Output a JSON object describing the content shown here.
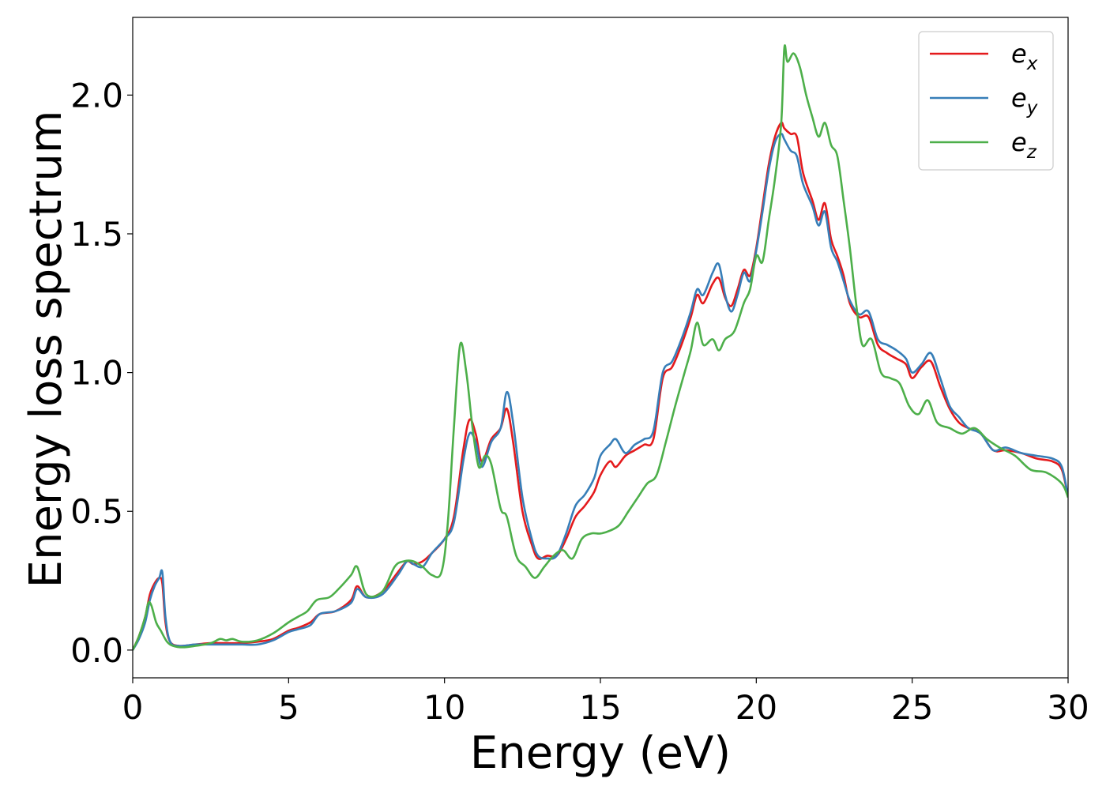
{
  "chart_data": {
    "type": "line",
    "title": "",
    "xlabel": "Energy (eV)",
    "ylabel": "Energy loss spectrum",
    "xlim": [
      0,
      30
    ],
    "ylim": [
      -0.1,
      2.28
    ],
    "xticks": [
      "0",
      "5",
      "10",
      "15",
      "20",
      "25",
      "30"
    ],
    "yticks": [
      "0.0",
      "0.5",
      "1.0",
      "1.5",
      "2.0"
    ],
    "grid": false,
    "legend_position": "top-right",
    "series": [
      {
        "name": "e_x",
        "legend_base": "e",
        "legend_sub": "x",
        "color": "#e41a1c",
        "x": [
          0,
          0.2,
          0.4,
          0.55,
          0.7,
          0.85,
          0.95,
          1.05,
          1.2,
          1.5,
          2,
          2.5,
          3,
          3.5,
          4,
          4.5,
          5,
          5.3,
          5.7,
          6,
          6.5,
          7,
          7.2,
          7.5,
          8,
          8.5,
          8.8,
          9,
          9.3,
          9.6,
          10,
          10.3,
          10.6,
          10.8,
          11.0,
          11.2,
          11.5,
          11.8,
          12.0,
          12.2,
          12.5,
          12.8,
          13.0,
          13.3,
          13.6,
          13.9,
          14.2,
          14.5,
          14.8,
          15.0,
          15.3,
          15.5,
          15.8,
          16.1,
          16.4,
          16.7,
          17.0,
          17.3,
          17.6,
          17.9,
          18.1,
          18.3,
          18.6,
          18.8,
          19.0,
          19.2,
          19.4,
          19.6,
          19.8,
          20.0,
          20.2,
          20.4,
          20.6,
          20.8,
          20.9,
          21.1,
          21.3,
          21.5,
          21.8,
          22.0,
          22.2,
          22.4,
          22.6,
          22.8,
          23.0,
          23.3,
          23.6,
          23.9,
          24.2,
          24.5,
          24.8,
          25.0,
          25.3,
          25.6,
          25.9,
          26.2,
          26.5,
          26.8,
          27.2,
          27.6,
          28.0,
          28.5,
          29.0,
          29.5,
          29.8,
          30
        ],
        "y": [
          0.0,
          0.05,
          0.12,
          0.2,
          0.24,
          0.26,
          0.24,
          0.1,
          0.03,
          0.015,
          0.02,
          0.025,
          0.025,
          0.025,
          0.03,
          0.04,
          0.07,
          0.08,
          0.1,
          0.13,
          0.14,
          0.18,
          0.23,
          0.19,
          0.21,
          0.28,
          0.32,
          0.31,
          0.32,
          0.35,
          0.4,
          0.48,
          0.72,
          0.83,
          0.78,
          0.68,
          0.76,
          0.8,
          0.87,
          0.75,
          0.5,
          0.38,
          0.33,
          0.34,
          0.34,
          0.4,
          0.48,
          0.52,
          0.57,
          0.63,
          0.68,
          0.66,
          0.7,
          0.72,
          0.74,
          0.76,
          0.98,
          1.02,
          1.1,
          1.2,
          1.28,
          1.25,
          1.32,
          1.34,
          1.27,
          1.24,
          1.3,
          1.37,
          1.35,
          1.45,
          1.6,
          1.75,
          1.85,
          1.9,
          1.88,
          1.86,
          1.85,
          1.72,
          1.62,
          1.55,
          1.61,
          1.48,
          1.42,
          1.35,
          1.25,
          1.2,
          1.2,
          1.1,
          1.07,
          1.05,
          1.03,
          0.98,
          1.02,
          1.04,
          0.95,
          0.87,
          0.82,
          0.8,
          0.78,
          0.72,
          0.72,
          0.71,
          0.69,
          0.68,
          0.65,
          0.55
        ]
      },
      {
        "name": "e_y",
        "legend_base": "e",
        "legend_sub": "y",
        "color": "#377eb8",
        "x": [
          0,
          0.2,
          0.4,
          0.55,
          0.7,
          0.85,
          0.95,
          1.05,
          1.2,
          1.5,
          2,
          2.5,
          3,
          3.5,
          4,
          4.5,
          5,
          5.3,
          5.7,
          6,
          6.5,
          7,
          7.2,
          7.5,
          8,
          8.5,
          8.8,
          9,
          9.3,
          9.6,
          10,
          10.3,
          10.6,
          10.8,
          11.0,
          11.2,
          11.5,
          11.8,
          12.0,
          12.2,
          12.5,
          12.8,
          13.0,
          13.3,
          13.6,
          13.9,
          14.2,
          14.5,
          14.8,
          15.0,
          15.3,
          15.5,
          15.8,
          16.1,
          16.4,
          16.7,
          17.0,
          17.3,
          17.6,
          17.9,
          18.1,
          18.3,
          18.6,
          18.8,
          19.0,
          19.2,
          19.4,
          19.6,
          19.8,
          20.0,
          20.2,
          20.4,
          20.6,
          20.8,
          20.9,
          21.1,
          21.3,
          21.5,
          21.8,
          22.0,
          22.2,
          22.4,
          22.6,
          22.8,
          23.0,
          23.3,
          23.6,
          23.9,
          24.2,
          24.5,
          24.8,
          25.0,
          25.3,
          25.6,
          25.9,
          26.2,
          26.5,
          26.8,
          27.2,
          27.6,
          28.0,
          28.5,
          29.0,
          29.5,
          29.8,
          30
        ],
        "y": [
          0.0,
          0.04,
          0.1,
          0.18,
          0.23,
          0.26,
          0.28,
          0.12,
          0.03,
          0.015,
          0.02,
          0.02,
          0.02,
          0.02,
          0.02,
          0.035,
          0.065,
          0.075,
          0.09,
          0.13,
          0.14,
          0.17,
          0.22,
          0.19,
          0.2,
          0.27,
          0.32,
          0.31,
          0.3,
          0.35,
          0.4,
          0.46,
          0.68,
          0.78,
          0.75,
          0.66,
          0.75,
          0.8,
          0.93,
          0.82,
          0.55,
          0.4,
          0.34,
          0.33,
          0.34,
          0.42,
          0.52,
          0.56,
          0.62,
          0.7,
          0.74,
          0.76,
          0.71,
          0.74,
          0.76,
          0.79,
          1.0,
          1.04,
          1.12,
          1.22,
          1.3,
          1.28,
          1.36,
          1.39,
          1.28,
          1.22,
          1.28,
          1.36,
          1.33,
          1.44,
          1.58,
          1.73,
          1.83,
          1.86,
          1.84,
          1.8,
          1.78,
          1.68,
          1.6,
          1.53,
          1.58,
          1.45,
          1.4,
          1.33,
          1.26,
          1.21,
          1.22,
          1.12,
          1.1,
          1.08,
          1.05,
          1.0,
          1.03,
          1.07,
          0.98,
          0.88,
          0.84,
          0.8,
          0.78,
          0.72,
          0.73,
          0.71,
          0.7,
          0.69,
          0.66,
          0.55
        ]
      },
      {
        "name": "e_z",
        "legend_base": "e",
        "legend_sub": "z",
        "color": "#4daf4a",
        "x": [
          0,
          0.2,
          0.4,
          0.5,
          0.6,
          0.75,
          0.9,
          1.1,
          1.3,
          1.6,
          2,
          2.5,
          2.8,
          3.0,
          3.2,
          3.5,
          4,
          4.5,
          5,
          5.3,
          5.6,
          5.9,
          6.3,
          6.6,
          7.0,
          7.2,
          7.5,
          8,
          8.4,
          8.7,
          9.0,
          9.3,
          9.6,
          9.9,
          10.1,
          10.3,
          10.5,
          10.7,
          10.9,
          11.1,
          11.3,
          11.5,
          11.8,
          12.0,
          12.3,
          12.6,
          12.9,
          13.2,
          13.5,
          13.8,
          14.1,
          14.4,
          14.7,
          15.0,
          15.3,
          15.6,
          15.9,
          16.2,
          16.5,
          16.8,
          17.1,
          17.4,
          17.7,
          17.9,
          18.1,
          18.3,
          18.6,
          18.8,
          19.0,
          19.3,
          19.6,
          19.8,
          20.0,
          20.2,
          20.4,
          20.6,
          20.8,
          20.9,
          21.0,
          21.2,
          21.4,
          21.6,
          21.8,
          22.0,
          22.2,
          22.4,
          22.6,
          22.8,
          23.0,
          23.2,
          23.4,
          23.7,
          24.0,
          24.3,
          24.6,
          24.9,
          25.2,
          25.5,
          25.8,
          26.2,
          26.6,
          27.0,
          27.4,
          27.8,
          28.3,
          28.8,
          29.3,
          29.8,
          30
        ],
        "y": [
          0.0,
          0.05,
          0.12,
          0.17,
          0.16,
          0.1,
          0.07,
          0.03,
          0.015,
          0.01,
          0.015,
          0.025,
          0.04,
          0.035,
          0.04,
          0.03,
          0.035,
          0.06,
          0.1,
          0.12,
          0.14,
          0.18,
          0.19,
          0.22,
          0.27,
          0.3,
          0.2,
          0.21,
          0.3,
          0.32,
          0.32,
          0.3,
          0.27,
          0.28,
          0.45,
          0.8,
          1.1,
          1.0,
          0.8,
          0.66,
          0.7,
          0.67,
          0.51,
          0.48,
          0.34,
          0.3,
          0.26,
          0.3,
          0.34,
          0.36,
          0.33,
          0.4,
          0.42,
          0.42,
          0.43,
          0.45,
          0.5,
          0.55,
          0.6,
          0.63,
          0.75,
          0.88,
          1.0,
          1.08,
          1.18,
          1.1,
          1.12,
          1.08,
          1.12,
          1.15,
          1.25,
          1.3,
          1.42,
          1.4,
          1.55,
          1.7,
          1.9,
          2.17,
          2.12,
          2.15,
          2.1,
          2.0,
          1.92,
          1.85,
          1.9,
          1.82,
          1.78,
          1.62,
          1.45,
          1.25,
          1.1,
          1.12,
          1.0,
          0.98,
          0.96,
          0.88,
          0.85,
          0.9,
          0.82,
          0.8,
          0.78,
          0.8,
          0.76,
          0.73,
          0.7,
          0.65,
          0.64,
          0.6,
          0.55
        ]
      }
    ]
  }
}
